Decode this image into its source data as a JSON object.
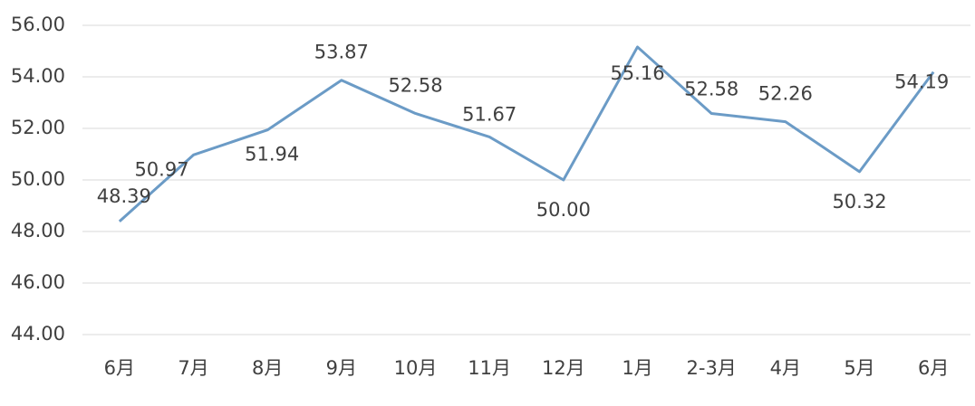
{
  "chart_data": {
    "type": "line",
    "categories": [
      "6月",
      "7月",
      "8月",
      "9月",
      "10月",
      "11月",
      "12月",
      "1月",
      "2-3月",
      "4月",
      "5月",
      "6月"
    ],
    "series": [
      {
        "color": "#6b9bc6",
        "values": [
          48.39,
          50.97,
          51.94,
          53.87,
          52.58,
          51.67,
          50.0,
          55.16,
          52.58,
          52.26,
          50.32,
          54.19
        ],
        "value_labels": [
          "48.39",
          "50.97",
          "51.94",
          "53.87",
          "52.58",
          "51.67",
          "50.00",
          "55.16",
          "52.58",
          "52.26",
          "50.32",
          "54.19"
        ]
      }
    ],
    "ylim": [
      44,
      56
    ],
    "yticks": [
      {
        "value": 44,
        "label": "44.00"
      },
      {
        "value": 46,
        "label": "46.00"
      },
      {
        "value": 48,
        "label": "48.00"
      },
      {
        "value": 50,
        "label": "50.00"
      },
      {
        "value": 52,
        "label": "52.00"
      },
      {
        "value": 54,
        "label": "54.00"
      },
      {
        "value": 56,
        "label": "56.00"
      }
    ],
    "grid": true
  }
}
